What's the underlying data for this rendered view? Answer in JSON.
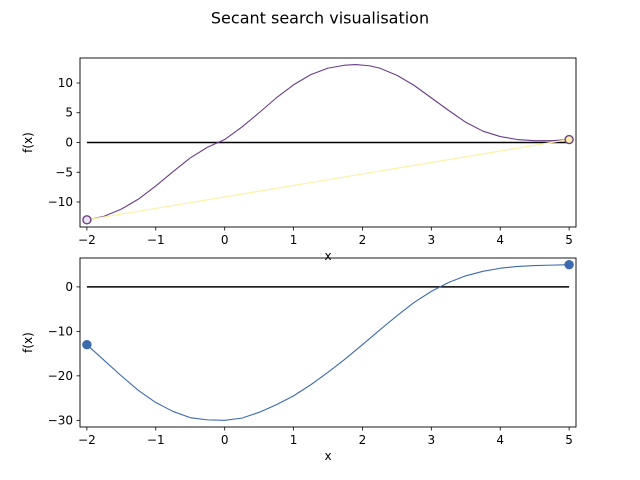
{
  "chart_data": {
    "title": "Secant search visualisation",
    "panels": [
      {
        "type": "line",
        "xlabel": "x",
        "ylabel": "f(x)",
        "xlim": [
          -2.1,
          5.1
        ],
        "ylim": [
          -14.2,
          14.2
        ],
        "xticks": [
          -2,
          -1,
          0,
          1,
          2,
          3,
          4,
          5
        ],
        "yticks": [
          -10,
          -5,
          0,
          5,
          10
        ],
        "zero_line": {
          "x": [
            -2,
            5
          ],
          "y": [
            0,
            0
          ],
          "color": "#000000"
        },
        "curve": {
          "color": "#6a3d8a",
          "x": [
            -2.0,
            -1.75,
            -1.5,
            -1.25,
            -1.0,
            -0.75,
            -0.5,
            -0.25,
            0.0,
            0.25,
            0.5,
            0.75,
            1.0,
            1.25,
            1.5,
            1.75,
            1.9,
            2.1,
            2.25,
            2.5,
            2.75,
            3.0,
            3.25,
            3.5,
            3.75,
            4.0,
            4.25,
            4.5,
            4.75,
            5.0
          ],
          "y": [
            -13.0,
            -12.4,
            -11.2,
            -9.5,
            -7.3,
            -4.9,
            -2.6,
            -0.8,
            0.5,
            2.6,
            5.0,
            7.5,
            9.7,
            11.4,
            12.5,
            13.0,
            13.1,
            12.9,
            12.5,
            11.3,
            9.6,
            7.5,
            5.4,
            3.4,
            1.9,
            1.0,
            0.5,
            0.3,
            0.3,
            0.5
          ]
        },
        "secant": {
          "color": "#fff0a8",
          "x": [
            -2.0,
            5.0
          ],
          "y": [
            -13.0,
            0.5
          ]
        },
        "endpoints": [
          {
            "x": -2.0,
            "y": -13.0,
            "fill": "#e8e4ee",
            "stroke": "#6a3d8a"
          },
          {
            "x": 5.0,
            "y": 0.5,
            "fill": "#fff0a8",
            "stroke": "#6a3d8a"
          }
        ]
      },
      {
        "type": "line",
        "xlabel": "x",
        "ylabel": "f(x)",
        "xlim": [
          -2.1,
          5.1
        ],
        "ylim": [
          -31.5,
          6.5
        ],
        "xticks": [
          -2,
          -1,
          0,
          1,
          2,
          3,
          4,
          5
        ],
        "yticks": [
          -30,
          -20,
          -10,
          0
        ],
        "zero_line": {
          "x": [
            -2,
            5
          ],
          "y": [
            0,
            0
          ],
          "color": "#000000"
        },
        "curve": {
          "color": "#3d6aaf",
          "x": [
            -2.0,
            -1.75,
            -1.5,
            -1.25,
            -1.0,
            -0.75,
            -0.5,
            -0.25,
            0.0,
            0.25,
            0.5,
            0.75,
            1.0,
            1.25,
            1.5,
            1.75,
            2.0,
            2.25,
            2.5,
            2.75,
            3.0,
            3.25,
            3.5,
            3.75,
            4.0,
            4.25,
            4.5,
            4.75,
            5.0
          ],
          "y": [
            -13.0,
            -16.5,
            -20.0,
            -23.3,
            -26.0,
            -28.0,
            -29.4,
            -29.9,
            -30.0,
            -29.5,
            -28.2,
            -26.5,
            -24.5,
            -22.0,
            -19.2,
            -16.2,
            -13.0,
            -9.7,
            -6.5,
            -3.5,
            -1.0,
            1.0,
            2.5,
            3.5,
            4.2,
            4.6,
            4.8,
            4.9,
            5.0
          ]
        },
        "endpoints": [
          {
            "x": -2.0,
            "y": -13.0,
            "fill": "#3d6aaf",
            "stroke": "#3d6aaf"
          },
          {
            "x": 5.0,
            "y": 5.0,
            "fill": "#3d6aaf",
            "stroke": "#3d6aaf"
          }
        ]
      }
    ]
  }
}
